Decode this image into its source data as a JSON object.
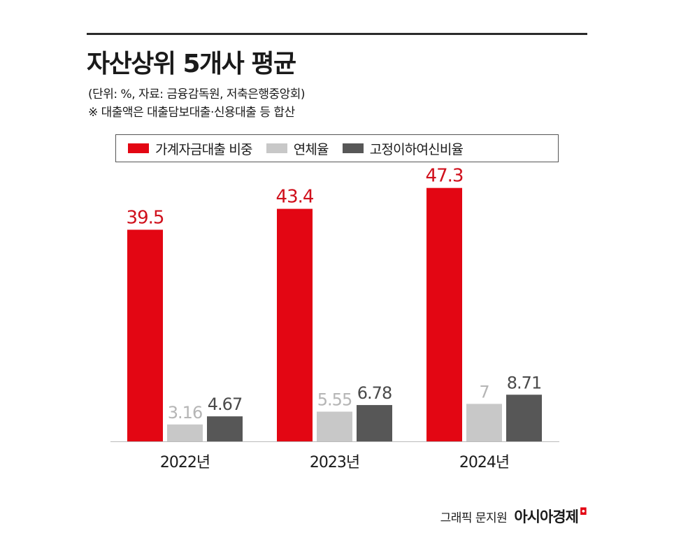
{
  "chart_data": {
    "type": "bar",
    "title": "자산상위 5개사 평균",
    "notes": [
      "(단위: %, 자료: 금융감독원, 저축은행중앙회)",
      "※ 대출액은 대출담보대출·신용대출 등 합산"
    ],
    "categories": [
      "2022년",
      "2023년",
      "2024년"
    ],
    "series": [
      {
        "name": "가계자금대출 비중",
        "color": "#e30613",
        "label_color": "#d0101c",
        "values": [
          39.5,
          43.4,
          47.3
        ],
        "labels": [
          "39.5",
          "43.4",
          "47.3"
        ]
      },
      {
        "name": "연체율",
        "color": "#c8c8c8",
        "label_color": "#b5b5b5",
        "values": [
          3.16,
          5.55,
          7
        ],
        "labels": [
          "3.16",
          "5.55",
          "7"
        ]
      },
      {
        "name": "고정이하여신비율",
        "color": "#575757",
        "label_color": "#4a4a4a",
        "values": [
          4.67,
          6.78,
          8.71
        ],
        "labels": [
          "4.67",
          "6.78",
          "8.71"
        ]
      }
    ],
    "ylim": [
      0,
      50
    ],
    "legend_position": "top",
    "grid": false
  },
  "footer": {
    "credit": "그래픽 문지원",
    "brand": "아시아경제",
    "brand_mark": "◘"
  }
}
